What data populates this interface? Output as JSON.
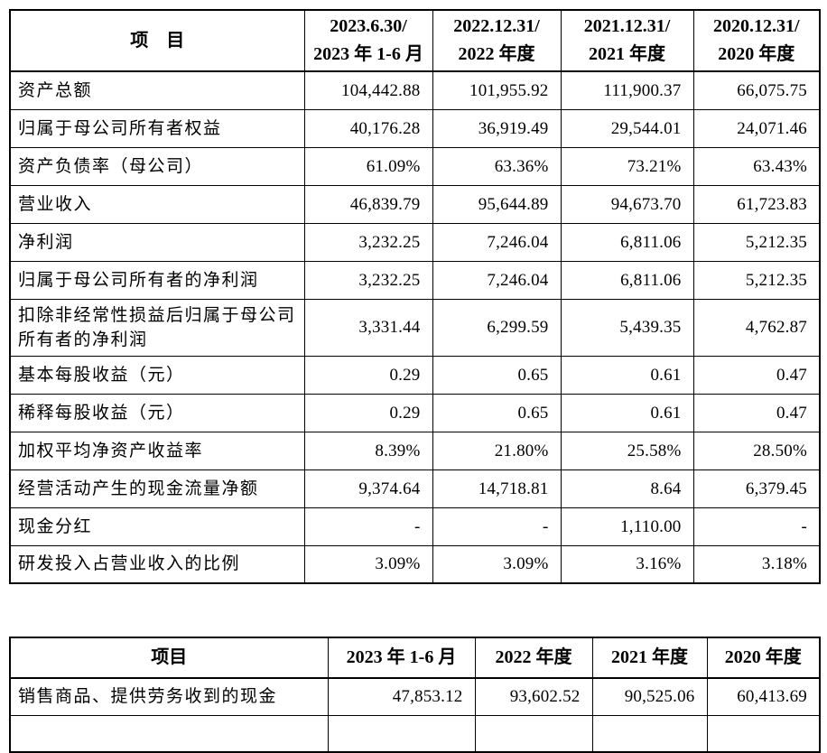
{
  "table1": {
    "header": {
      "item": "项　目",
      "cols": [
        {
          "line1": "2023.6.30/",
          "line2": "2023 年 1-6 月"
        },
        {
          "line1": "2022.12.31/",
          "line2": "2022 年度"
        },
        {
          "line1": "2021.12.31/",
          "line2": "2021 年度"
        },
        {
          "line1": "2020.12.31/",
          "line2": "2020 年度"
        }
      ]
    },
    "rows": [
      {
        "label": "资产总额",
        "values": [
          "104,442.88",
          "101,955.92",
          "111,900.37",
          "66,075.75"
        ]
      },
      {
        "label": "归属于母公司所有者权益",
        "values": [
          "40,176.28",
          "36,919.49",
          "29,544.01",
          "24,071.46"
        ]
      },
      {
        "label": "资产负债率（母公司）",
        "values": [
          "61.09%",
          "63.36%",
          "73.21%",
          "63.43%"
        ]
      },
      {
        "label": "营业收入",
        "values": [
          "46,839.79",
          "95,644.89",
          "94,673.70",
          "61,723.83"
        ]
      },
      {
        "label": "净利润",
        "values": [
          "3,232.25",
          "7,246.04",
          "6,811.06",
          "5,212.35"
        ]
      },
      {
        "label": "归属于母公司所有者的净利润",
        "values": [
          "3,232.25",
          "7,246.04",
          "6,811.06",
          "5,212.35"
        ]
      },
      {
        "label": "扣除非经常性损益后归属于母公司所有者的净利润",
        "values": [
          "3,331.44",
          "6,299.59",
          "5,439.35",
          "4,762.87"
        ]
      },
      {
        "label": "基本每股收益（元）",
        "values": [
          "0.29",
          "0.65",
          "0.61",
          "0.47"
        ]
      },
      {
        "label": "稀释每股收益（元）",
        "values": [
          "0.29",
          "0.65",
          "0.61",
          "0.47"
        ]
      },
      {
        "label": "加权平均净资产收益率",
        "values": [
          "8.39%",
          "21.80%",
          "25.58%",
          "28.50%"
        ]
      },
      {
        "label": "经营活动产生的现金流量净额",
        "values": [
          "9,374.64",
          "14,718.81",
          "8.64",
          "6,379.45"
        ]
      },
      {
        "label": "现金分红",
        "values": [
          "-",
          "-",
          "1,110.00",
          "-"
        ]
      },
      {
        "label": "研发投入占营业收入的比例",
        "values": [
          "3.09%",
          "3.09%",
          "3.16%",
          "3.18%"
        ]
      }
    ]
  },
  "table2": {
    "header": {
      "item": "项目",
      "cols": [
        {
          "label": "2023 年 1-6 月"
        },
        {
          "label": "2022 年度"
        },
        {
          "label": "2021 年度"
        },
        {
          "label": "2020 年度"
        }
      ]
    },
    "rows": [
      {
        "label": "销售商品、提供劳务收到的现金",
        "values": [
          "47,853.12",
          "93,602.52",
          "90,525.06",
          "60,413.69"
        ]
      }
    ]
  },
  "colors": {
    "border": "#000000",
    "text": "#000000",
    "background": "#ffffff"
  }
}
